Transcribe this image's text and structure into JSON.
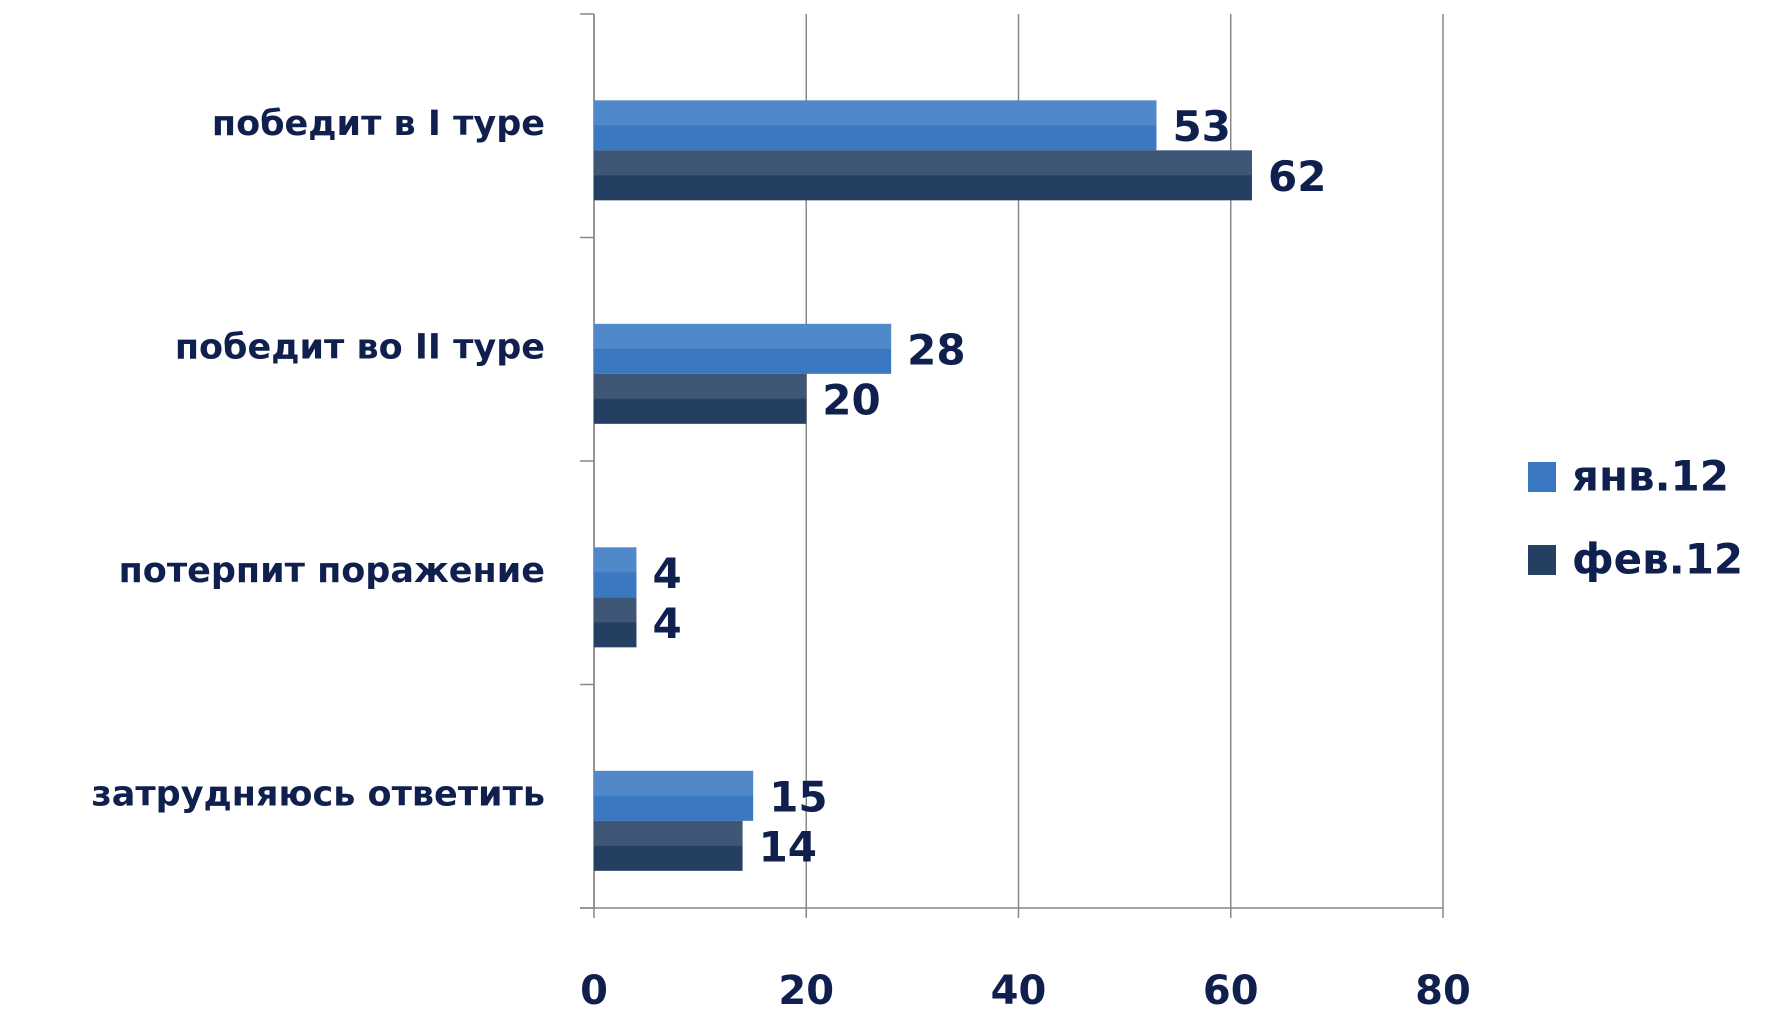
{
  "chart_data": {
    "type": "barh",
    "categories": [
      "победит в I туре",
      "победит во II туре",
      "потерпит поражение",
      "затрудняюсь ответить"
    ],
    "series": [
      {
        "name": "янв.12",
        "color": "#3a78c2",
        "label_color": "#0f1f4e",
        "values": [
          53,
          28,
          4,
          15
        ]
      },
      {
        "name": "фев.12",
        "color": "#253f63",
        "label_color": "#1a72b8",
        "values": [
          62,
          20,
          4,
          14
        ]
      }
    ],
    "xlim": [
      0,
      80
    ],
    "xticks": [
      0,
      20,
      40,
      60,
      80
    ],
    "grid": true,
    "legend": "right"
  }
}
